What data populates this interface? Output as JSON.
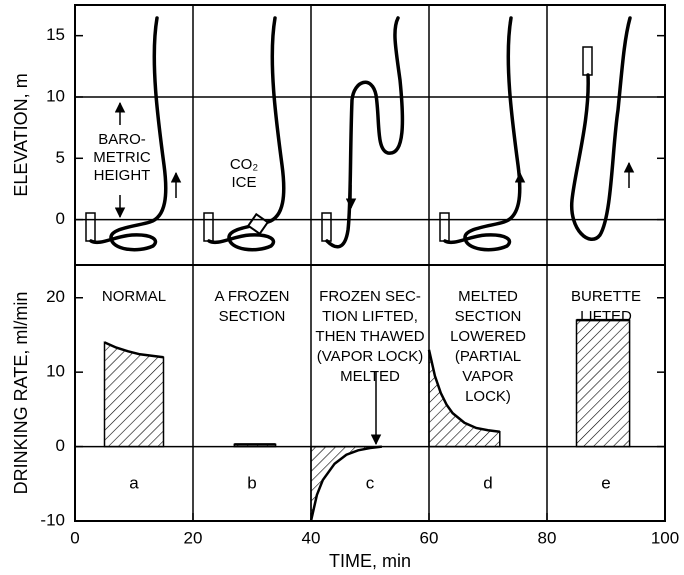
{
  "chart_data": [
    {
      "type": "diagram",
      "ylabel": "ELEVATION, m",
      "xlim": [
        0,
        100
      ],
      "ylim": [
        -3.7,
        17.5
      ],
      "yticks": [
        0,
        5,
        10,
        15
      ],
      "grid_lines": [
        0,
        10
      ],
      "annotations": [
        {
          "lines": [
            "BARO-",
            "METRIC",
            "HEIGHT"
          ]
        },
        {
          "lines": [
            "CO₂",
            "ICE"
          ]
        }
      ]
    },
    {
      "type": "area",
      "xlabel": "TIME, min",
      "ylabel": "DRINKING RATE, ml/min",
      "xlim": [
        0,
        100
      ],
      "xticks": [
        0,
        20,
        40,
        60,
        80,
        100
      ],
      "ylim": [
        -10,
        24.4
      ],
      "yticks": [
        -10,
        0,
        10,
        20
      ],
      "grid_lines": [
        0
      ],
      "panel_grid": true,
      "color": "#000000",
      "labels": [
        [
          "NORMAL"
        ],
        [
          "A FROZEN",
          "SECTION"
        ],
        [
          "FROZEN SEC-",
          "TION LIFTED,",
          "THEN THAWED",
          "(VAPOR LOCK)",
          "MELTED"
        ],
        [
          "MELTED",
          "SECTION",
          "LOWERED",
          "(PARTIAL",
          "VAPOR",
          "LOCK)"
        ],
        [
          "BURETTE",
          "LIFTED"
        ]
      ],
      "letters": [
        "a",
        "b",
        "c",
        "d",
        "e"
      ],
      "series": [
        {
          "x": [
            5,
            7,
            9,
            11,
            13,
            15
          ],
          "values": [
            14,
            13.3,
            12.8,
            12.4,
            12.2,
            12.0
          ]
        },
        {
          "x": [
            27,
            34
          ],
          "values": [
            0.3,
            0.3
          ]
        },
        {
          "x": [
            40,
            41,
            42,
            44,
            46,
            48,
            50,
            52
          ],
          "values": [
            -10,
            -6.5,
            -4.5,
            -2.3,
            -1.1,
            -0.5,
            -0.2,
            0
          ]
        },
        {
          "x": [
            60,
            61,
            62,
            63,
            64,
            66,
            68,
            70,
            72
          ],
          "values": [
            13,
            9.5,
            7.2,
            5.6,
            4.5,
            3.2,
            2.5,
            2.2,
            2
          ]
        },
        {
          "x": [
            85,
            94
          ],
          "values": [
            17,
            17
          ]
        }
      ]
    }
  ]
}
